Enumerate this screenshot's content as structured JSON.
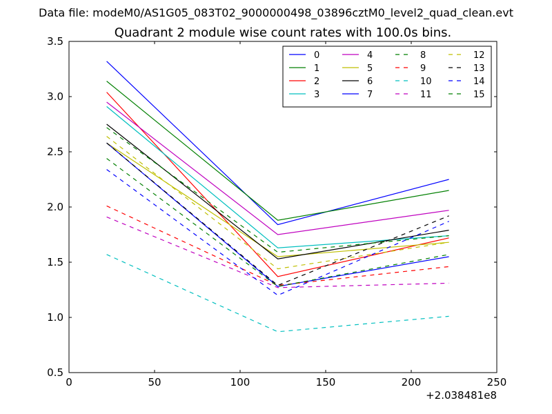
{
  "chart_data": {
    "type": "line",
    "supertitle": "Data file: modeM0/AS1G05_083T02_9000000498_03896cztM0_level2_quad_clean.evt",
    "title": "Quadrant 2 module wise count rates with 100.0s bins.",
    "xlabel": "",
    "ylabel": "",
    "xlim": [
      0,
      250
    ],
    "ylim": [
      0.5,
      3.5
    ],
    "x_offset_label": "+2.038481e8",
    "x_ticks": [
      0,
      50,
      100,
      150,
      200,
      250
    ],
    "x_tick_labels": [
      "0",
      "50",
      "100",
      "150",
      "200",
      "250"
    ],
    "y_ticks": [
      0.5,
      1.0,
      1.5,
      2.0,
      2.5,
      3.0,
      3.5
    ],
    "y_tick_labels": [
      "0.5",
      "1.0",
      "1.5",
      "2.0",
      "2.5",
      "3.0",
      "3.5"
    ],
    "grid": false,
    "legend_position": "top-right",
    "legend_columns": 4,
    "x": [
      22,
      122,
      222
    ],
    "series": [
      {
        "name": "0",
        "color": "#0000ff",
        "dash": "solid",
        "values": [
          3.32,
          1.84,
          2.25
        ]
      },
      {
        "name": "1",
        "color": "#007f00",
        "dash": "solid",
        "values": [
          3.14,
          1.88,
          2.15
        ]
      },
      {
        "name": "2",
        "color": "#ff0000",
        "dash": "solid",
        "values": [
          3.04,
          1.37,
          1.72
        ]
      },
      {
        "name": "3",
        "color": "#00bfbf",
        "dash": "solid",
        "values": [
          2.91,
          1.63,
          1.74
        ]
      },
      {
        "name": "4",
        "color": "#bf00bf",
        "dash": "solid",
        "values": [
          2.95,
          1.75,
          1.97
        ]
      },
      {
        "name": "5",
        "color": "#bfbf00",
        "dash": "solid",
        "values": [
          2.58,
          1.55,
          1.68
        ]
      },
      {
        "name": "6",
        "color": "#000000",
        "dash": "solid",
        "values": [
          2.75,
          1.53,
          1.79
        ]
      },
      {
        "name": "7",
        "color": "#0000ff",
        "dash": "solid",
        "values": [
          2.58,
          1.28,
          1.55
        ]
      },
      {
        "name": "8",
        "color": "#007f00",
        "dash": "dashed",
        "values": [
          2.72,
          1.59,
          1.74
        ]
      },
      {
        "name": "9",
        "color": "#ff0000",
        "dash": "dashed",
        "values": [
          2.01,
          1.29,
          1.46
        ]
      },
      {
        "name": "10",
        "color": "#00bfbf",
        "dash": "dashed",
        "values": [
          1.57,
          0.87,
          1.01
        ]
      },
      {
        "name": "11",
        "color": "#bf00bf",
        "dash": "dashed",
        "values": [
          1.91,
          1.27,
          1.31
        ]
      },
      {
        "name": "12",
        "color": "#bfbf00",
        "dash": "dashed",
        "values": [
          2.64,
          1.44,
          1.68
        ]
      },
      {
        "name": "13",
        "color": "#000000",
        "dash": "dashed",
        "values": [
          2.58,
          1.29,
          1.92
        ]
      },
      {
        "name": "14",
        "color": "#0000ff",
        "dash": "dashed",
        "values": [
          2.34,
          1.2,
          1.87
        ]
      },
      {
        "name": "15",
        "color": "#007f00",
        "dash": "dashed",
        "values": [
          2.44,
          1.28,
          1.57
        ]
      }
    ]
  }
}
